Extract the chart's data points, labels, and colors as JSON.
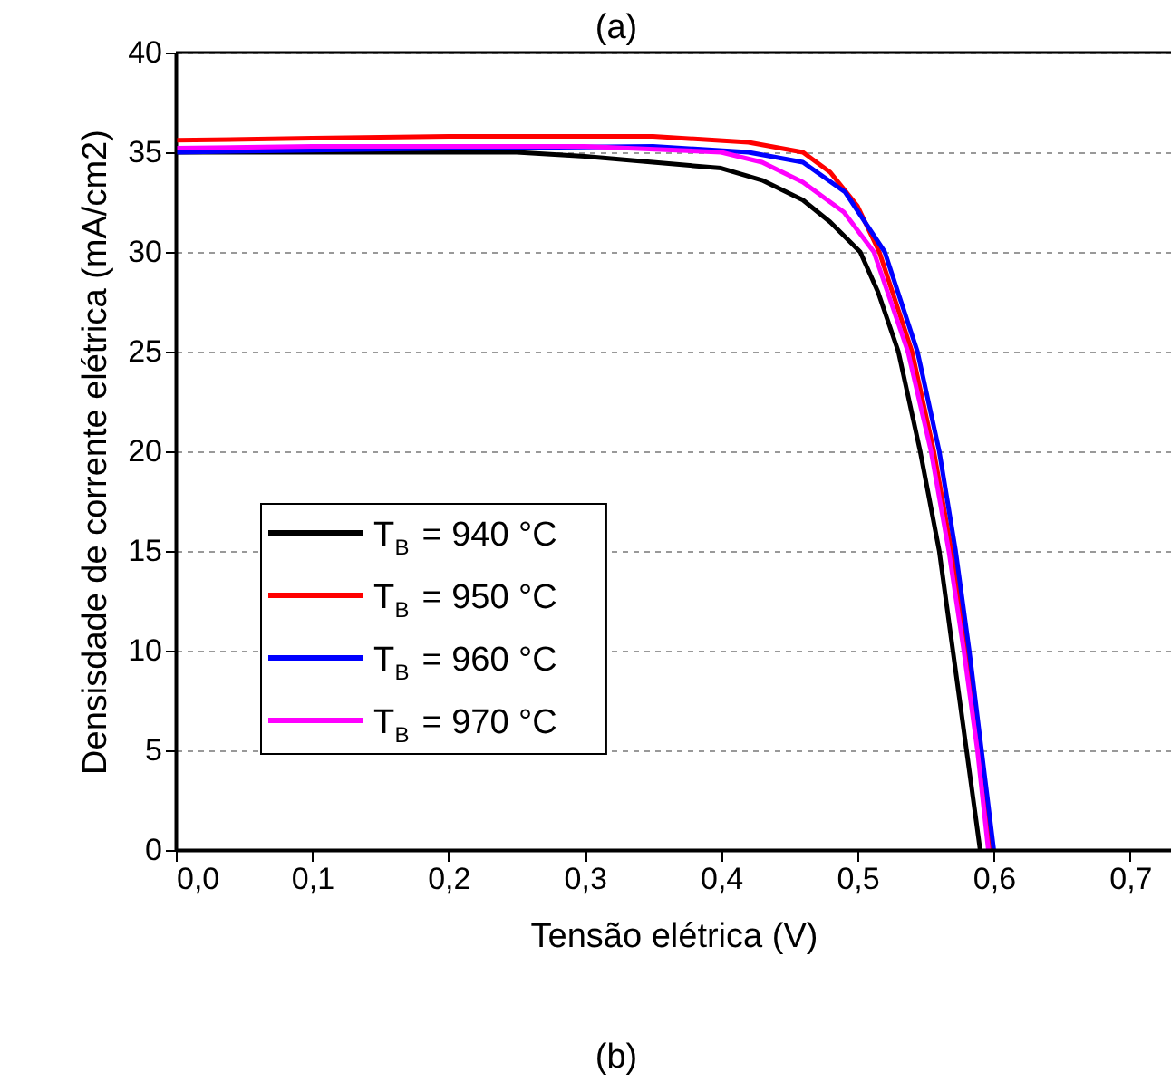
{
  "chart_data": {
    "type": "line",
    "title": "(a)",
    "xlabel": "Tensão elétrica (V)",
    "ylabel": "Densisdade de corrente elétrica (mA/cm2)",
    "annotations": [
      "(b)"
    ],
    "xlim": [
      0,
      0.73
    ],
    "ylim": [
      0,
      40
    ],
    "xticks": [
      {
        "value": 0,
        "label": "0,0"
      },
      {
        "value": 0.1,
        "label": "0,1"
      },
      {
        "value": 0.2,
        "label": "0,2"
      },
      {
        "value": 0.3,
        "label": "0,3"
      },
      {
        "value": 0.4,
        "label": "0,4"
      },
      {
        "value": 0.5,
        "label": "0,5"
      },
      {
        "value": 0.6,
        "label": "0,6"
      },
      {
        "value": 0.7,
        "label": "0,7"
      }
    ],
    "yticks": [
      0,
      5,
      10,
      15,
      20,
      25,
      30,
      35,
      40
    ],
    "grid": "y",
    "legend": "left",
    "marker": "none",
    "line_style": "solid",
    "series": [
      {
        "name": "T$_{B}$ = 940 °C",
        "color": "#000000",
        "x": [
          0,
          0.1,
          0.2,
          0.25,
          0.3,
          0.35,
          0.4,
          0.43,
          0.46,
          0.48,
          0.502,
          0.515,
          0.53,
          0.546,
          0.56,
          0.57,
          0.58,
          0.59
        ],
        "values": [
          35.0,
          35.0,
          35.0,
          35.0,
          34.8,
          34.5,
          34.2,
          33.6,
          32.6,
          31.5,
          30,
          28,
          25,
          20,
          15,
          10,
          5,
          0
        ]
      },
      {
        "name": "T$_{B}$ = 950 °C",
        "color": "#ff0000",
        "x": [
          0,
          0.1,
          0.2,
          0.3,
          0.35,
          0.42,
          0.46,
          0.48,
          0.5,
          0.516,
          0.54,
          0.556,
          0.569,
          0.58,
          0.589,
          0.597
        ],
        "values": [
          35.6,
          35.7,
          35.8,
          35.8,
          35.8,
          35.5,
          35.0,
          34.0,
          32.3,
          30,
          25,
          20,
          15,
          10,
          5,
          0
        ]
      },
      {
        "name": "T$_{B}$ = 960 °C",
        "color": "#0000ff",
        "x": [
          0,
          0.1,
          0.2,
          0.35,
          0.42,
          0.46,
          0.491,
          0.52,
          0.544,
          0.56,
          0.572,
          0.582,
          0.591,
          0.6
        ],
        "values": [
          35.0,
          35.1,
          35.2,
          35.3,
          35.0,
          34.5,
          33,
          30,
          25,
          20,
          15,
          10,
          5,
          0
        ]
      },
      {
        "name": "T$_{B}$ = 970 °C",
        "color": "#ff00ff",
        "x": [
          0,
          0.1,
          0.2,
          0.3,
          0.4,
          0.43,
          0.46,
          0.49,
          0.512,
          0.537,
          0.554,
          0.567,
          0.578,
          0.588,
          0.596
        ],
        "values": [
          35.2,
          35.3,
          35.3,
          35.3,
          35.0,
          34.5,
          33.5,
          32.0,
          30,
          25,
          20,
          15,
          10,
          5,
          0
        ]
      }
    ]
  }
}
